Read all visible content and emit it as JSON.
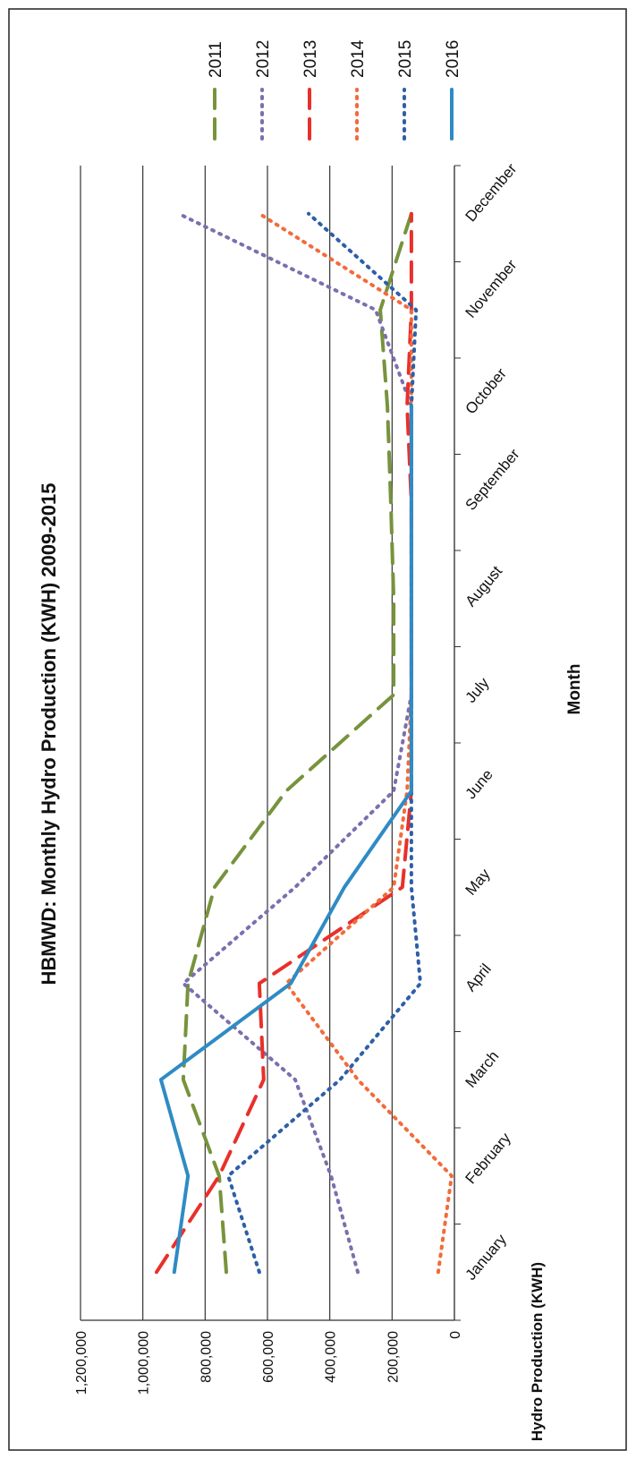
{
  "chart_data": {
    "type": "line",
    "title": "HBMWD:  Monthly Hydro Production  (KWH) 2009-2015",
    "x_label": "Month",
    "y_label": "Hydro Production (KWH)",
    "categories": [
      "January",
      "February",
      "March",
      "April",
      "May",
      "June",
      "July",
      "August",
      "September",
      "October",
      "November",
      "December"
    ],
    "series": [
      {
        "name": "2011",
        "color": "#77933c",
        "style": "dash",
        "values": [
          732000,
          755000,
          870000,
          855000,
          770000,
          540000,
          195000,
          195000,
          204000,
          215000,
          238000,
          138000
        ]
      },
      {
        "name": "2012",
        "color": "#7c6fae",
        "style": "dot",
        "values": [
          310000,
          396000,
          511000,
          870000,
          511000,
          195000,
          138000,
          138000,
          138000,
          138000,
          253000,
          885000
        ]
      },
      {
        "name": "2013",
        "color": "#e8302a",
        "style": "dash",
        "values": [
          956000,
          755000,
          612000,
          626000,
          167000,
          138000,
          138000,
          138000,
          138000,
          152000,
          138000,
          138000
        ]
      },
      {
        "name": "2014",
        "color": "#f26b3a",
        "style": "dot",
        "values": [
          52000,
          9000,
          310000,
          540000,
          195000,
          152000,
          138000,
          138000,
          138000,
          138000,
          138000,
          626000
        ]
      },
      {
        "name": "2015",
        "color": "#2e5fa8",
        "style": "dot",
        "values": [
          626000,
          726000,
          367000,
          109000,
          138000,
          138000,
          138000,
          138000,
          138000,
          138000,
          123000,
          468000
        ]
      },
      {
        "name": "2016",
        "color": "#2f8bc4",
        "style": "solid",
        "values": [
          899000,
          855000,
          942000,
          525000,
          353000,
          138000,
          138000,
          138000,
          138000,
          138000,
          null,
          null
        ]
      }
    ],
    "ylim": [
      0,
      1200000
    ],
    "yticks": [
      0,
      {
        "value": 200000,
        "label": "200,000"
      },
      {
        "value": 400000,
        "label": "400,000"
      },
      {
        "value": 600000,
        "label": "600,000"
      },
      {
        "value": 800000,
        "label": "800,000"
      },
      {
        "value": 1000000,
        "label": "1,000,000"
      },
      {
        "value": 1200000,
        "label": "1,200,000"
      }
    ],
    "grid": true,
    "legend": "right"
  }
}
